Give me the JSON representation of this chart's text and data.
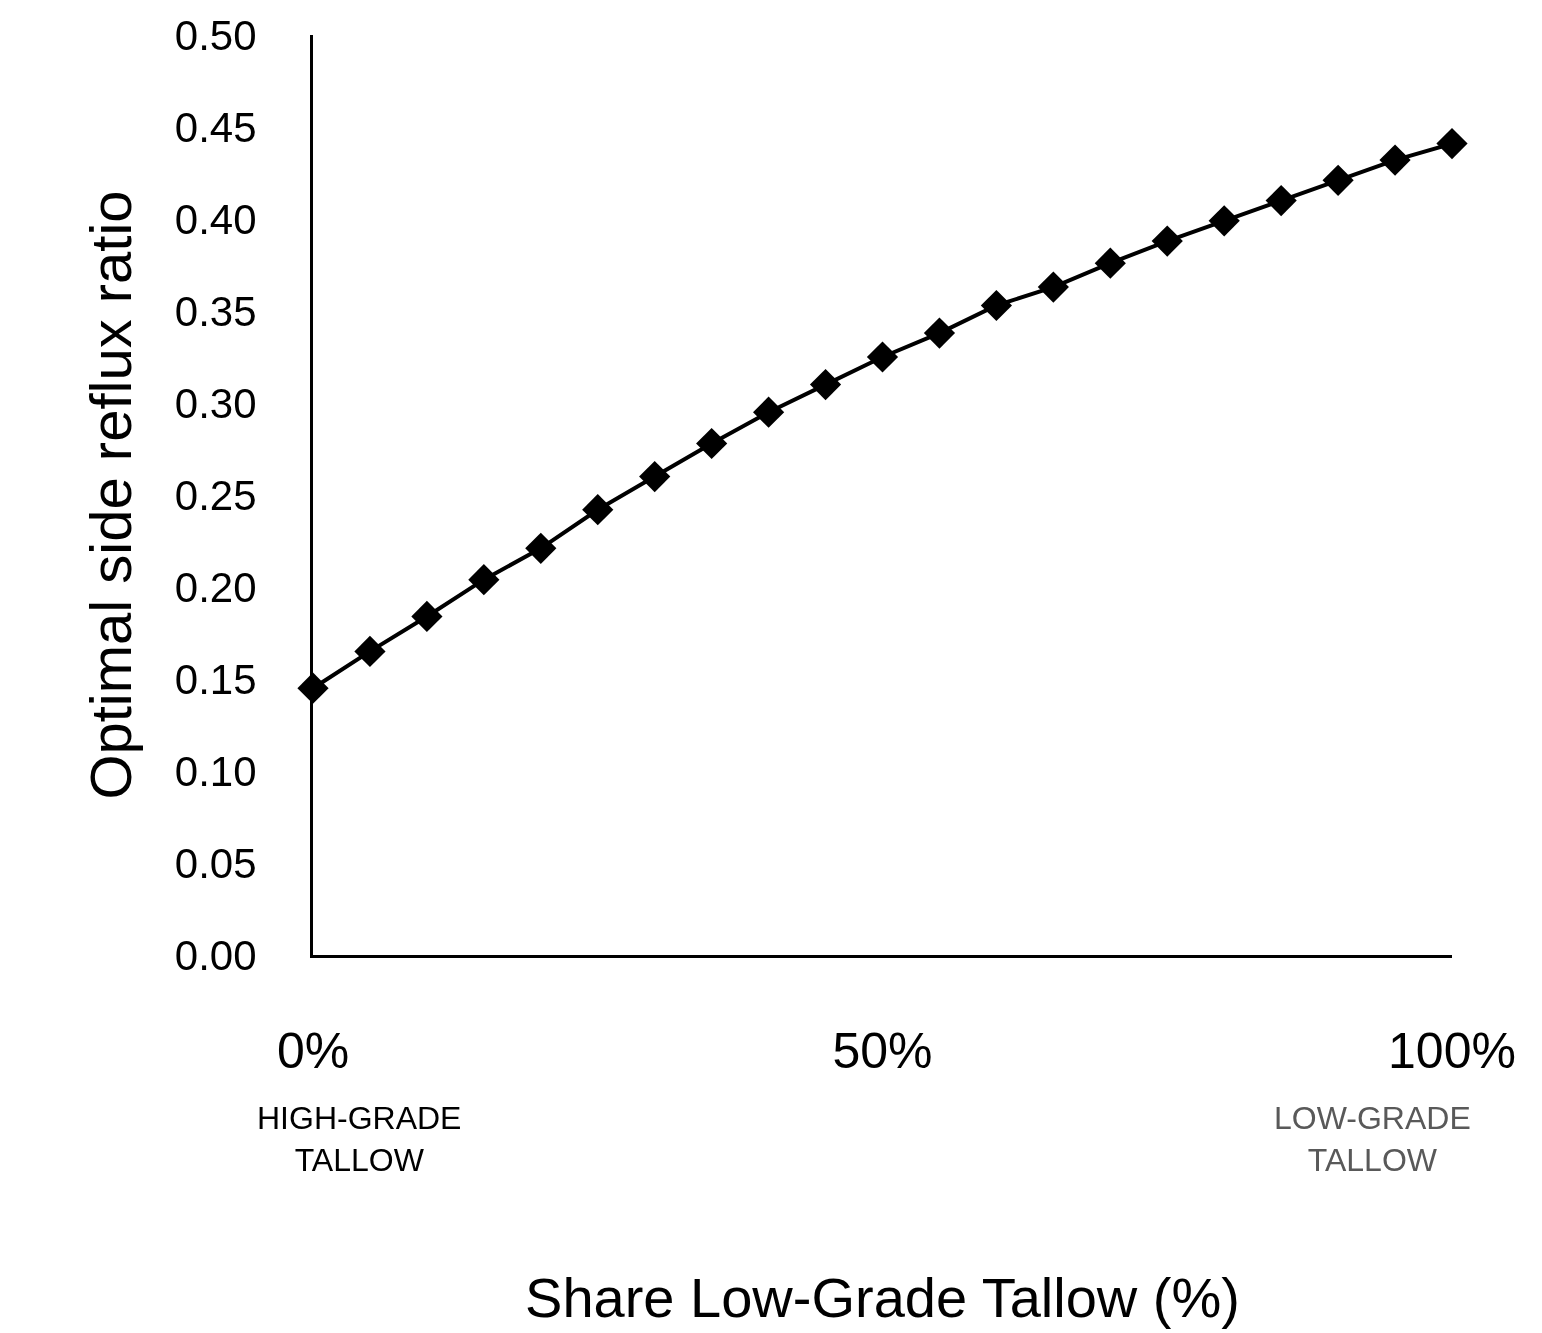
{
  "chart_data": {
    "type": "line",
    "xlabel": "Share Low-Grade Tallow (%)",
    "ylabel": "Optimal side reflux ratio",
    "x": [
      0,
      5,
      10,
      15,
      20,
      25,
      30,
      35,
      40,
      45,
      50,
      55,
      60,
      65,
      70,
      75,
      80,
      85,
      90,
      95,
      100
    ],
    "series": [
      {
        "color": "#000000",
        "values": [
          0.145,
          0.165,
          0.184,
          0.204,
          0.221,
          0.242,
          0.26,
          0.278,
          0.295,
          0.31,
          0.325,
          0.338,
          0.353,
          0.363,
          0.376,
          0.388,
          0.399,
          0.41,
          0.421,
          0.432,
          0.441
        ]
      }
    ],
    "xlim": [
      0,
      100
    ],
    "xticks": [
      {
        "value": 0,
        "label": "0%"
      },
      {
        "value": 50,
        "label": "50%"
      },
      {
        "value": 100,
        "label": "100%"
      }
    ],
    "ylim": [
      0,
      0.5
    ],
    "yticks": [
      {
        "value": 0,
        "label": "0.00"
      },
      {
        "value": 0.05,
        "label": "0.05"
      },
      {
        "value": 0.1,
        "label": "0.10"
      },
      {
        "value": 0.15,
        "label": "0.15"
      },
      {
        "value": 0.2,
        "label": "0.20"
      },
      {
        "value": 0.25,
        "label": "0.25"
      },
      {
        "value": 0.3,
        "label": "0.30"
      },
      {
        "value": 0.35,
        "label": "0.35"
      },
      {
        "value": 0.4,
        "label": "0.40"
      },
      {
        "value": 0.45,
        "label": "0.45"
      },
      {
        "value": 0.5,
        "label": "0.50"
      }
    ],
    "annotations": [
      "HIGH-GRADE\nTALLOW",
      "LOW-GRADE\nTALLOW"
    ],
    "grid": false,
    "marker": "diamond",
    "line_style": "solid"
  }
}
